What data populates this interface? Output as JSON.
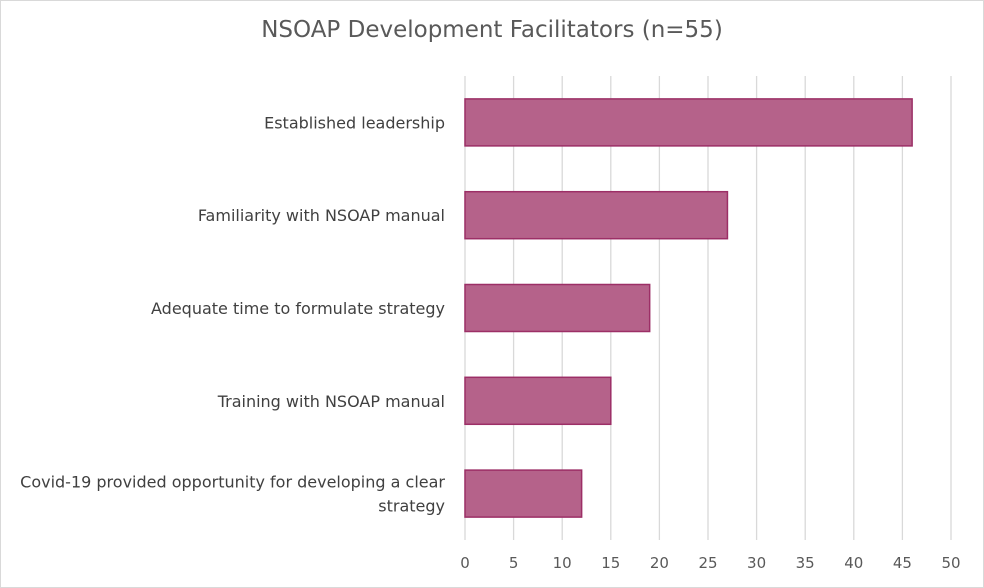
{
  "chart_data": {
    "type": "bar",
    "orientation": "horizontal",
    "title": "NSOAP Development Facilitators (n=55)",
    "categories": [
      [
        "Established leadership"
      ],
      [
        "Familiarity with NSOAP manual"
      ],
      [
        "Adequate time to formulate strategy"
      ],
      [
        "Training with NSOAP manual"
      ],
      [
        "Covid-19 provided opportunity for developing a clear",
        "strategy"
      ]
    ],
    "values": [
      46,
      27,
      19,
      15,
      12
    ],
    "xlim": [
      0,
      50
    ],
    "xticks": [
      0,
      5,
      10,
      15,
      20,
      25,
      30,
      35,
      40,
      45,
      50
    ],
    "grid": "vertical",
    "legend": "none",
    "colors": {
      "bar_fill": "#b5628a",
      "bar_stroke": "#9c2f66",
      "grid": "#d9d9d9"
    }
  }
}
